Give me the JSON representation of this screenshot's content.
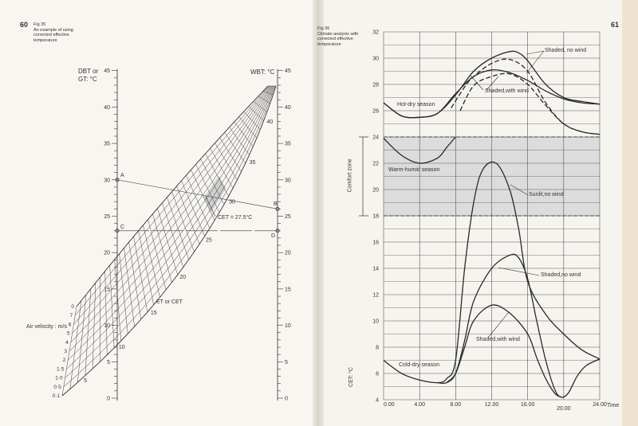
{
  "left_page": {
    "page_number": "60",
    "caption": [
      "Fig 35",
      "An example of using",
      "corrected effective",
      "temperature"
    ],
    "dbt_axis_label": [
      "DBT or",
      "GT: °C"
    ],
    "wbt_axis_label": "WBT: °C",
    "axis_ticks": [
      "0",
      "5",
      "10",
      "15",
      "20",
      "25",
      "30",
      "35",
      "40",
      "45"
    ],
    "points": {
      "A": "A",
      "B": "B",
      "C": "C",
      "D": "D"
    },
    "point_values": {
      "A": 30,
      "B": 26,
      "C": 23,
      "D": 23
    },
    "cet_label": "CET = 27.5°C",
    "et_label": "ET or CET",
    "air_velocity_label": "Air velocity : m/s",
    "velocity_ticks": [
      "0·1",
      "0·5",
      "1·0",
      "1·5",
      "2",
      "3",
      "4",
      "5",
      "6",
      "7",
      "0"
    ],
    "et_ticks": [
      "5",
      "10",
      "15",
      "20",
      "25",
      "30",
      "35",
      "40"
    ],
    "line_color": "#333333",
    "highlight_color": "#cfcfcf"
  },
  "right_page": {
    "page_number": "61",
    "caption": [
      "Fig 36",
      "Climate analysis with",
      "corrected effective",
      "temperature"
    ],
    "comfort_zone_label": "Comfort zone"
  },
  "chart_data": {
    "type": "line",
    "xlabel": "Time",
    "ylabel": "CET: °C",
    "xlim": [
      0,
      24
    ],
    "ylim": [
      4,
      32
    ],
    "x_ticks": [
      "0.00",
      "4.00",
      "8.00",
      "12.00",
      "16.00",
      "20.00",
      "24.00"
    ],
    "y_ticks": [
      "4",
      "6",
      "8",
      "10",
      "12",
      "14",
      "16",
      "18",
      "20",
      "22",
      "24",
      "26",
      "28",
      "30",
      "32"
    ],
    "grid": true,
    "comfort_zone": [
      18,
      24
    ],
    "comfort_fill": "#dcdcdc",
    "annotations": [
      "Shaded, no wind",
      "Shaded,with wind",
      "Hot-dry season",
      "Warm-humid season",
      "Sunlit,no wind",
      "Shaded,no wind",
      "Shaded,with wind",
      "Cold-dry season"
    ],
    "series": [
      {
        "group": "Hot-dry season",
        "style": "solid",
        "points": [
          [
            0,
            26.6
          ],
          [
            2,
            25.6
          ],
          [
            4,
            25.5
          ],
          [
            6,
            25.8
          ],
          [
            8,
            27.2
          ],
          [
            10,
            29.0
          ],
          [
            12,
            30.0
          ],
          [
            14,
            30.5
          ],
          [
            15,
            30.4
          ],
          [
            16,
            29.8
          ],
          [
            18,
            28.0
          ],
          [
            20,
            27.0
          ],
          [
            22,
            26.7
          ],
          [
            24,
            26.5
          ]
        ]
      },
      {
        "group": "Hot-dry season",
        "style": "solid",
        "points": [
          [
            0,
            26.6
          ],
          [
            2,
            25.6
          ],
          [
            4,
            25.5
          ],
          [
            6,
            25.8
          ],
          [
            8,
            27.3
          ],
          [
            10,
            28.6
          ],
          [
            12,
            29.1
          ],
          [
            14,
            28.9
          ],
          [
            16,
            28.3
          ],
          [
            18,
            27.5
          ],
          [
            20,
            26.9
          ],
          [
            22,
            26.6
          ],
          [
            24,
            26.5
          ]
        ]
      },
      {
        "group": "Hot-dry season",
        "style": "dashed",
        "points": [
          [
            7.5,
            26.2
          ],
          [
            9,
            27.8
          ],
          [
            10,
            28.6
          ],
          [
            12,
            29.6
          ],
          [
            14,
            29.9
          ],
          [
            16,
            29.0
          ],
          [
            18,
            26.6
          ],
          [
            20,
            25.0
          ],
          [
            22,
            24.4
          ],
          [
            24,
            24.2
          ]
        ]
      },
      {
        "group": "Hot-dry season",
        "style": "dashed",
        "points": [
          [
            8.5,
            26.0
          ],
          [
            10,
            27.9
          ],
          [
            12,
            28.6
          ],
          [
            14,
            28.8
          ],
          [
            16,
            28.0
          ],
          [
            18,
            26.4
          ],
          [
            20,
            25.0
          ],
          [
            22,
            24.4
          ],
          [
            24,
            24.2
          ]
        ]
      },
      {
        "group": "Warm-humid season",
        "style": "solid",
        "points": [
          [
            0,
            23.9
          ],
          [
            2,
            22.6
          ],
          [
            4,
            22.0
          ],
          [
            6,
            22.4
          ],
          [
            7,
            23.2
          ],
          [
            8,
            24.0
          ]
        ]
      },
      {
        "group": "Cold-dry season",
        "style": "solid",
        "points": [
          [
            0,
            7.0
          ],
          [
            2,
            6.0
          ],
          [
            4,
            5.5
          ],
          [
            6,
            5.3
          ],
          [
            7,
            5.6
          ],
          [
            8,
            7.0
          ],
          [
            9,
            14.0
          ],
          [
            10,
            19.0
          ],
          [
            11,
            21.5
          ],
          [
            12.5,
            22.0
          ],
          [
            14,
            20.0
          ],
          [
            15,
            17.0
          ],
          [
            16,
            13.0
          ],
          [
            18,
            10.5
          ],
          [
            20,
            9.0
          ],
          [
            22,
            7.8
          ],
          [
            24,
            7.1
          ]
        ]
      },
      {
        "group": "Cold-dry season",
        "style": "solid",
        "points": [
          [
            6,
            5.3
          ],
          [
            7,
            5.3
          ],
          [
            8,
            6.0
          ],
          [
            9,
            8.5
          ],
          [
            10,
            11.5
          ],
          [
            12,
            14.0
          ],
          [
            14,
            15.0
          ],
          [
            15,
            14.8
          ],
          [
            16,
            13.2
          ],
          [
            17,
            10.0
          ],
          [
            18,
            7.0
          ],
          [
            19,
            4.8
          ],
          [
            19.7,
            4.2
          ],
          [
            20.5,
            4.5
          ],
          [
            21.5,
            5.8
          ],
          [
            22.5,
            6.6
          ],
          [
            24,
            7.1
          ]
        ]
      },
      {
        "group": "Cold-dry season",
        "style": "solid",
        "points": [
          [
            7,
            5.3
          ],
          [
            8,
            6.0
          ],
          [
            9,
            8.0
          ],
          [
            10,
            10.0
          ],
          [
            12,
            11.2
          ],
          [
            14,
            10.6
          ],
          [
            16,
            9.0
          ],
          [
            17,
            7.2
          ],
          [
            18,
            5.6
          ],
          [
            19,
            4.5
          ],
          [
            19.7,
            4.2
          ]
        ]
      }
    ]
  }
}
